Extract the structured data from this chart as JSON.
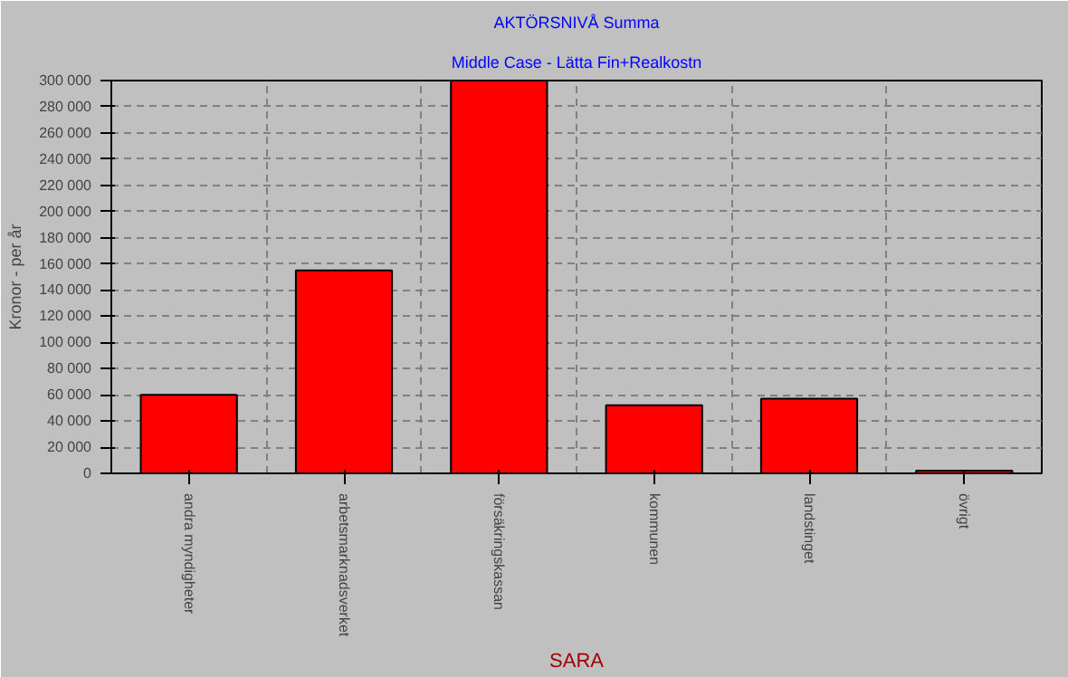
{
  "chart_data": {
    "type": "bar",
    "title": "AKTÖRSNIVÅ Summa",
    "subtitle": "Middle Case - Lätta Fin+Realkostn",
    "xlabel": "SARA",
    "ylabel": "Kronor - per år",
    "categories": [
      "andra myndigheter",
      "arbetsmarknadsverket",
      "försäkringskassan",
      "kommunen",
      "landstinget",
      "övrigt"
    ],
    "values": [
      60000,
      155000,
      300000,
      52000,
      57000,
      2000
    ],
    "color": "#ff0000",
    "ylim": [
      0,
      300000
    ],
    "yticks": [
      {
        "value": 0,
        "label": "0"
      },
      {
        "value": 20000,
        "label": "20 000"
      },
      {
        "value": 40000,
        "label": "40 000"
      },
      {
        "value": 60000,
        "label": "60 000"
      },
      {
        "value": 80000,
        "label": "80 000"
      },
      {
        "value": 100000,
        "label": "100 000"
      },
      {
        "value": 120000,
        "label": "120 000"
      },
      {
        "value": 140000,
        "label": "140 000"
      },
      {
        "value": 160000,
        "label": "160 000"
      },
      {
        "value": 180000,
        "label": "180 000"
      },
      {
        "value": 200000,
        "label": "200 000"
      },
      {
        "value": 220000,
        "label": "220 000"
      },
      {
        "value": 240000,
        "label": "240 000"
      },
      {
        "value": 260000,
        "label": "260 000"
      },
      {
        "value": 280000,
        "label": "280 000"
      },
      {
        "value": 300000,
        "label": "300 000"
      }
    ],
    "grid": true
  }
}
